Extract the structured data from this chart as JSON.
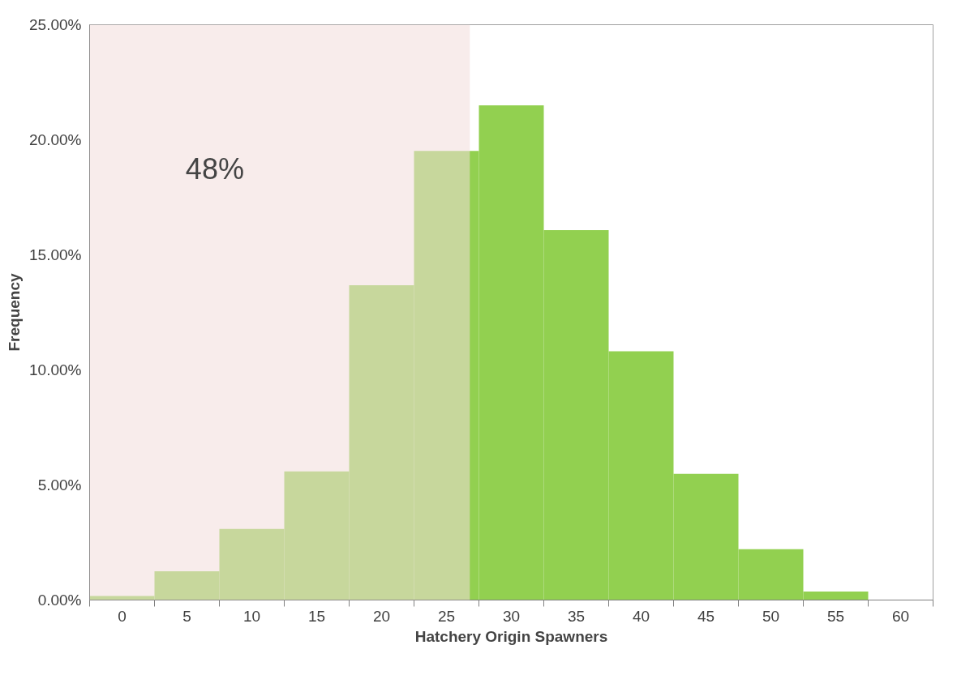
{
  "chart_data": {
    "type": "histogram",
    "xlabel": "Hatchery Origin Spawners",
    "ylabel": "Frequency",
    "bins": [
      -2.5,
      2.5,
      7.5,
      12.5,
      17.5,
      22.5,
      27.5,
      32.5,
      37.5,
      42.5,
      47.5,
      52.5,
      57.5,
      62.5
    ],
    "values": [
      0.18,
      1.25,
      3.09,
      5.59,
      13.68,
      19.52,
      21.5,
      16.07,
      10.81,
      5.48,
      2.21,
      0.37,
      0
    ],
    "color": "#92d050",
    "xlim": [
      -2.5,
      62.5
    ],
    "xticks": [
      {
        "value": -2.5,
        "label": null
      },
      0,
      {
        "value": 2.5,
        "label": null
      },
      5,
      {
        "value": 7.5,
        "label": null
      },
      10,
      {
        "value": 12.5,
        "label": null
      },
      15,
      {
        "value": 17.5,
        "label": null
      },
      20,
      {
        "value": 22.5,
        "label": null
      },
      25,
      {
        "value": 27.5,
        "label": null
      },
      30,
      {
        "value": 32.5,
        "label": null
      },
      35,
      {
        "value": 37.5,
        "label": null
      },
      40,
      {
        "value": 42.5,
        "label": null
      },
      45,
      {
        "value": 47.5,
        "label": null
      },
      50,
      {
        "value": 52.5,
        "label": null
      },
      55,
      {
        "value": 57.5,
        "label": null
      },
      60,
      {
        "value": 62.5,
        "label": null
      }
    ],
    "ylim": [
      0,
      25
    ],
    "yticks": [
      {
        "value": 0,
        "label": "0.00%"
      },
      {
        "value": 5,
        "label": "5.00%"
      },
      {
        "value": 10,
        "label": "10.00%"
      },
      {
        "value": 15,
        "label": "15.00%"
      },
      {
        "value": 20,
        "label": "20.00%"
      },
      {
        "value": 25,
        "label": "25.00%"
      }
    ],
    "bands": [
      {
        "axis": "x",
        "from": -2.5,
        "to": 26.8,
        "label": "48%",
        "color": "#f2dcdb"
      }
    ],
    "grid": false
  }
}
